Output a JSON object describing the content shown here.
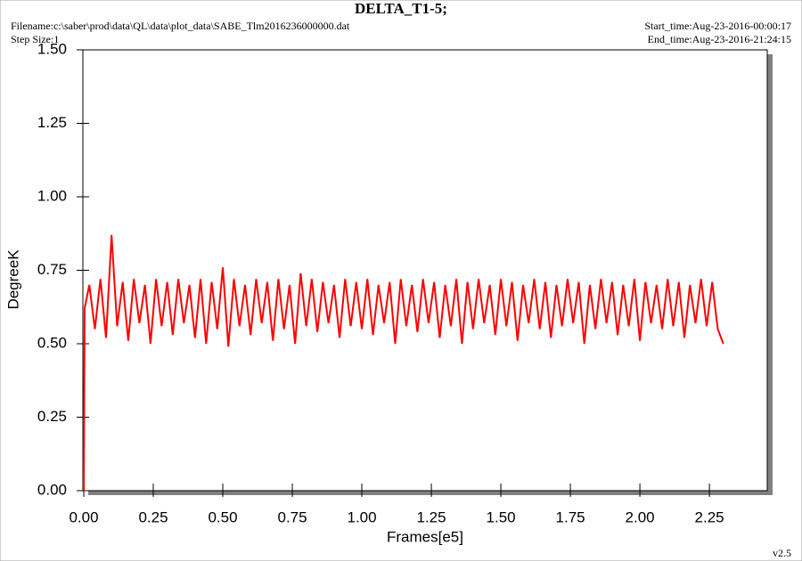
{
  "chart_data": {
    "type": "line",
    "title": "DELTA_T1-5;",
    "filename": "Filename:c:\\saber\\prod\\data\\QL\\data\\plot_data\\SABE_Tlm2016236000000.dat",
    "step_size": "Step Size:1",
    "start_time": "Start_time:Aug-23-2016-00:00:17",
    "end_time": "End_time:Aug-23-2016-21:24:15",
    "version": "v2.5",
    "x_label": "Frames[e5]",
    "y_label": "DegreeK",
    "xlim": [
      0,
      2.458
    ],
    "ylim": [
      0,
      1.5
    ],
    "xticks": [
      {
        "value": 0,
        "label": "0.00"
      },
      {
        "value": 0.25,
        "label": "0.25"
      },
      {
        "value": 0.5,
        "label": "0.50"
      },
      {
        "value": 0.75,
        "label": "0.75"
      },
      {
        "value": 1,
        "label": "1.00"
      },
      {
        "value": 1.25,
        "label": "1.25"
      },
      {
        "value": 1.5,
        "label": "1.50"
      },
      {
        "value": 1.75,
        "label": "1.75"
      },
      {
        "value": 2,
        "label": "2.00"
      },
      {
        "value": 2.25,
        "label": "2.25"
      }
    ],
    "yticks": [
      {
        "value": 0,
        "label": "0.00"
      },
      {
        "value": 0.25,
        "label": "0.25"
      },
      {
        "value": 0.5,
        "label": "0.50"
      },
      {
        "value": 0.75,
        "label": "0.75"
      },
      {
        "value": 1,
        "label": "1.00"
      },
      {
        "value": 1.25,
        "label": "1.25"
      },
      {
        "value": 1.5,
        "label": "1.50"
      }
    ],
    "x": [
      0,
      0.003,
      0.02,
      0.04,
      0.06,
      0.08,
      0.1,
      0.12,
      0.14,
      0.16,
      0.18,
      0.2,
      0.22,
      0.24,
      0.26,
      0.28,
      0.3,
      0.32,
      0.34,
      0.36,
      0.38,
      0.4,
      0.42,
      0.44,
      0.46,
      0.48,
      0.5,
      0.52,
      0.54,
      0.56,
      0.58,
      0.6,
      0.62,
      0.64,
      0.66,
      0.68,
      0.7,
      0.72,
      0.74,
      0.76,
      0.78,
      0.8,
      0.82,
      0.84,
      0.86,
      0.88,
      0.9,
      0.92,
      0.94,
      0.96,
      0.98,
      1,
      1.02,
      1.04,
      1.06,
      1.08,
      1.1,
      1.12,
      1.14,
      1.16,
      1.18,
      1.2,
      1.22,
      1.24,
      1.26,
      1.28,
      1.3,
      1.32,
      1.34,
      1.36,
      1.38,
      1.4,
      1.42,
      1.44,
      1.46,
      1.48,
      1.5,
      1.52,
      1.54,
      1.56,
      1.58,
      1.6,
      1.62,
      1.64,
      1.66,
      1.68,
      1.7,
      1.72,
      1.74,
      1.76,
      1.78,
      1.8,
      1.82,
      1.84,
      1.86,
      1.88,
      1.9,
      1.92,
      1.94,
      1.96,
      1.98,
      2,
      2.02,
      2.04,
      2.06,
      2.08,
      2.1,
      2.12,
      2.14,
      2.16,
      2.18,
      2.2,
      2.22,
      2.24,
      2.26,
      2.28,
      2.3
    ],
    "series": [
      {
        "color": "#ff0000",
        "values": [
          0,
          0.62,
          0.7,
          0.55,
          0.72,
          0.52,
          0.87,
          0.56,
          0.71,
          0.51,
          0.72,
          0.57,
          0.7,
          0.5,
          0.72,
          0.56,
          0.71,
          0.53,
          0.72,
          0.57,
          0.7,
          0.52,
          0.72,
          0.5,
          0.71,
          0.55,
          0.76,
          0.49,
          0.72,
          0.56,
          0.7,
          0.53,
          0.72,
          0.57,
          0.71,
          0.51,
          0.72,
          0.55,
          0.7,
          0.5,
          0.74,
          0.56,
          0.72,
          0.54,
          0.71,
          0.57,
          0.7,
          0.52,
          0.72,
          0.56,
          0.71,
          0.55,
          0.72,
          0.53,
          0.7,
          0.57,
          0.71,
          0.5,
          0.72,
          0.56,
          0.7,
          0.54,
          0.72,
          0.57,
          0.71,
          0.52,
          0.7,
          0.56,
          0.72,
          0.5,
          0.71,
          0.55,
          0.72,
          0.57,
          0.7,
          0.53,
          0.72,
          0.56,
          0.71,
          0.51,
          0.7,
          0.57,
          0.72,
          0.55,
          0.71,
          0.52,
          0.7,
          0.56,
          0.72,
          0.57,
          0.71,
          0.5,
          0.7,
          0.55,
          0.72,
          0.57,
          0.71,
          0.53,
          0.7,
          0.56,
          0.72,
          0.51,
          0.71,
          0.57,
          0.7,
          0.55,
          0.72,
          0.56,
          0.71,
          0.52,
          0.7,
          0.57,
          0.72,
          0.56,
          0.71,
          0.55,
          0.5
        ]
      }
    ]
  }
}
